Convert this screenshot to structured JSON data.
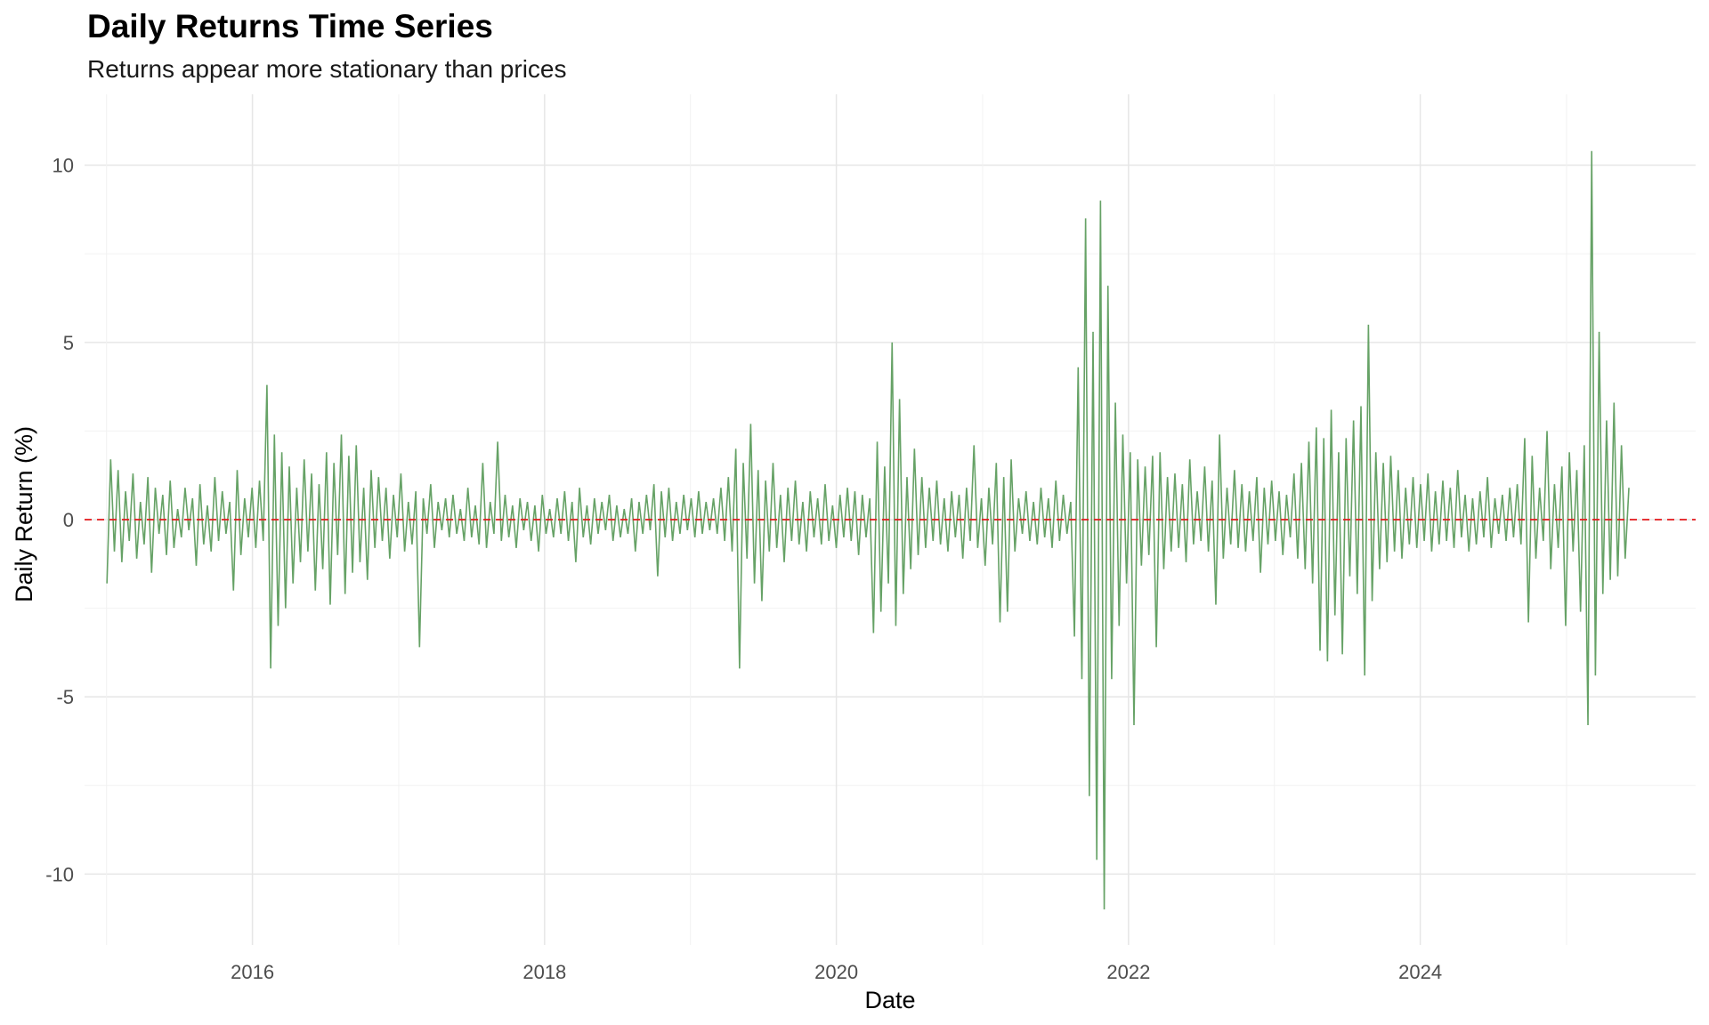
{
  "chart_data": {
    "type": "line",
    "title": "Daily Returns Time Series",
    "subtitle": "Returns appear more stationary than prices",
    "xlabel": "Date",
    "ylabel": "Daily Return (%)",
    "x_range": [
      "2014-11-07",
      "2025-11-20"
    ],
    "ylim": [
      -12,
      12
    ],
    "x_ticks": [
      "2016",
      "2018",
      "2020",
      "2022",
      "2024"
    ],
    "y_ticks": [
      "-10",
      "-5",
      "0",
      "5",
      "10"
    ],
    "grid": true,
    "legend": "none",
    "line_color": "#66a266",
    "reference_line": {
      "y": 0,
      "style": "dashed",
      "color": "#e41a1c"
    },
    "series": [
      {
        "date_range": [
          "2015-01-02",
          "2025-06-06"
        ],
        "frequency": "daily",
        "values": [
          -1.8,
          1.7,
          -0.9,
          1.4,
          -1.2,
          0.8,
          -0.6,
          1.3,
          -1.1,
          0.5,
          -0.7,
          1.2,
          -1.5,
          0.9,
          -0.4,
          0.7,
          -1.0,
          1.1,
          -0.8,
          0.3,
          -0.5,
          0.9,
          -0.3,
          0.6,
          -1.3,
          1.0,
          -0.7,
          0.4,
          -0.9,
          1.2,
          -0.6,
          0.8,
          -0.4,
          0.5,
          -2.0,
          1.4,
          -1.0,
          0.6,
          -0.5,
          0.9,
          -0.8,
          1.1,
          -0.6,
          3.8,
          -4.2,
          2.4,
          -3.0,
          1.9,
          -2.5,
          1.5,
          -1.8,
          0.9,
          -1.2,
          1.7,
          -0.9,
          1.3,
          -2.0,
          1.0,
          -1.4,
          1.9,
          -2.4,
          1.6,
          -1.0,
          2.4,
          -2.1,
          1.8,
          -1.5,
          2.1,
          -1.2,
          0.9,
          -1.7,
          1.4,
          -0.8,
          1.2,
          -0.6,
          0.9,
          -1.1,
          0.7,
          -0.5,
          1.3,
          -0.9,
          0.5,
          -0.7,
          0.8,
          -3.6,
          0.6,
          -0.4,
          1.0,
          -0.8,
          0.5,
          -0.3,
          0.6,
          -0.5,
          0.7,
          -0.4,
          0.3,
          -0.6,
          0.9,
          -0.5,
          0.4,
          -0.7,
          1.6,
          -0.8,
          0.5,
          -0.4,
          2.2,
          -0.6,
          0.7,
          -0.5,
          0.4,
          -0.8,
          0.6,
          -0.3,
          0.5,
          -0.6,
          0.4,
          -0.9,
          0.7,
          -0.4,
          0.3,
          -0.5,
          0.6,
          -0.4,
          0.8,
          -0.6,
          0.5,
          -1.2,
          0.9,
          -0.5,
          0.4,
          -0.7,
          0.6,
          -0.4,
          0.5,
          -0.3,
          0.7,
          -0.6,
          0.4,
          -0.5,
          0.3,
          -0.4,
          0.6,
          -0.9,
          0.5,
          -0.4,
          0.7,
          -0.3,
          1.0,
          -1.6,
          0.8,
          -0.5,
          0.9,
          -0.6,
          0.5,
          -0.4,
          0.7,
          -0.3,
          0.6,
          -0.5,
          0.8,
          -0.4,
          0.5,
          -0.3,
          0.6,
          -0.4,
          0.9,
          -0.6,
          1.2,
          -0.9,
          2.0,
          -4.2,
          1.6,
          -1.1,
          2.7,
          -1.8,
          1.4,
          -2.3,
          1.1,
          -0.9,
          1.6,
          -0.8,
          0.7,
          -1.2,
          0.9,
          -0.6,
          1.1,
          -0.7,
          0.5,
          -0.9,
          0.8,
          -0.5,
          0.6,
          -0.7,
          1.0,
          -0.6,
          0.4,
          -0.8,
          0.7,
          -0.5,
          0.9,
          -0.6,
          0.8,
          -1.0,
          0.7,
          -0.5,
          0.6,
          -3.2,
          2.2,
          -2.6,
          1.5,
          -1.8,
          5.0,
          -3.0,
          3.4,
          -2.1,
          1.2,
          -1.4,
          2.0,
          -1.0,
          1.2,
          -0.8,
          0.9,
          -0.6,
          1.1,
          -0.7,
          0.6,
          -0.9,
          0.8,
          -0.5,
          0.7,
          -1.1,
          0.9,
          -0.6,
          2.1,
          -0.8,
          0.6,
          -1.3,
          0.9,
          -0.7,
          1.6,
          -2.9,
          1.2,
          -2.6,
          1.7,
          -0.9,
          0.6,
          -0.4,
          0.8,
          -0.6,
          0.5,
          -0.7,
          0.9,
          -0.5,
          0.6,
          -0.8,
          1.1,
          -0.6,
          0.7,
          -0.4,
          0.5,
          -3.3,
          4.3,
          -4.5,
          8.5,
          -7.8,
          5.3,
          -9.6,
          9.0,
          -11.0,
          6.6,
          -4.5,
          3.3,
          -3.0,
          2.4,
          -1.8,
          1.9,
          -5.8,
          1.7,
          -1.3,
          1.5,
          -1.0,
          1.8,
          -3.6,
          1.9,
          -1.4,
          1.2,
          -0.9,
          1.3,
          -0.8,
          1.0,
          -1.2,
          1.7,
          -0.7,
          0.8,
          -0.6,
          1.5,
          -0.9,
          1.1,
          -2.4,
          2.4,
          -1.1,
          0.9,
          -0.7,
          1.4,
          -0.8,
          1.0,
          -0.9,
          0.8,
          -0.6,
          1.2,
          -1.5,
          0.9,
          -0.7,
          1.1,
          -0.6,
          0.8,
          -1.0,
          0.7,
          -0.5,
          1.3,
          -1.1,
          1.6,
          -1.4,
          2.2,
          -1.8,
          2.6,
          -3.7,
          2.3,
          -4.0,
          3.1,
          -2.7,
          1.9,
          -3.8,
          2.3,
          -1.6,
          2.8,
          -2.1,
          3.2,
          -4.4,
          5.5,
          -2.3,
          1.9,
          -1.4,
          1.6,
          -1.2,
          1.8,
          -0.9,
          1.4,
          -1.1,
          0.9,
          -0.7,
          1.2,
          -0.8,
          1.0,
          -0.6,
          1.3,
          -0.9,
          0.8,
          -0.7,
          1.1,
          -0.6,
          0.9,
          -0.8,
          1.4,
          -0.5,
          0.7,
          -0.9,
          0.6,
          -0.7,
          0.8,
          -0.5,
          1.2,
          -0.8,
          0.6,
          -0.4,
          0.7,
          -0.6,
          0.9,
          -0.5,
          1.0,
          -0.7,
          2.3,
          -2.9,
          1.8,
          -1.1,
          0.9,
          -0.6,
          2.5,
          -1.4,
          1.0,
          -0.8,
          1.5,
          -3.0,
          1.9,
          -0.9,
          1.4,
          -2.6,
          2.1,
          -5.8,
          10.4,
          -4.4,
          5.3,
          -2.1,
          2.8,
          -1.7,
          3.3,
          -1.6,
          2.1,
          -1.1,
          0.9
        ]
      }
    ]
  }
}
